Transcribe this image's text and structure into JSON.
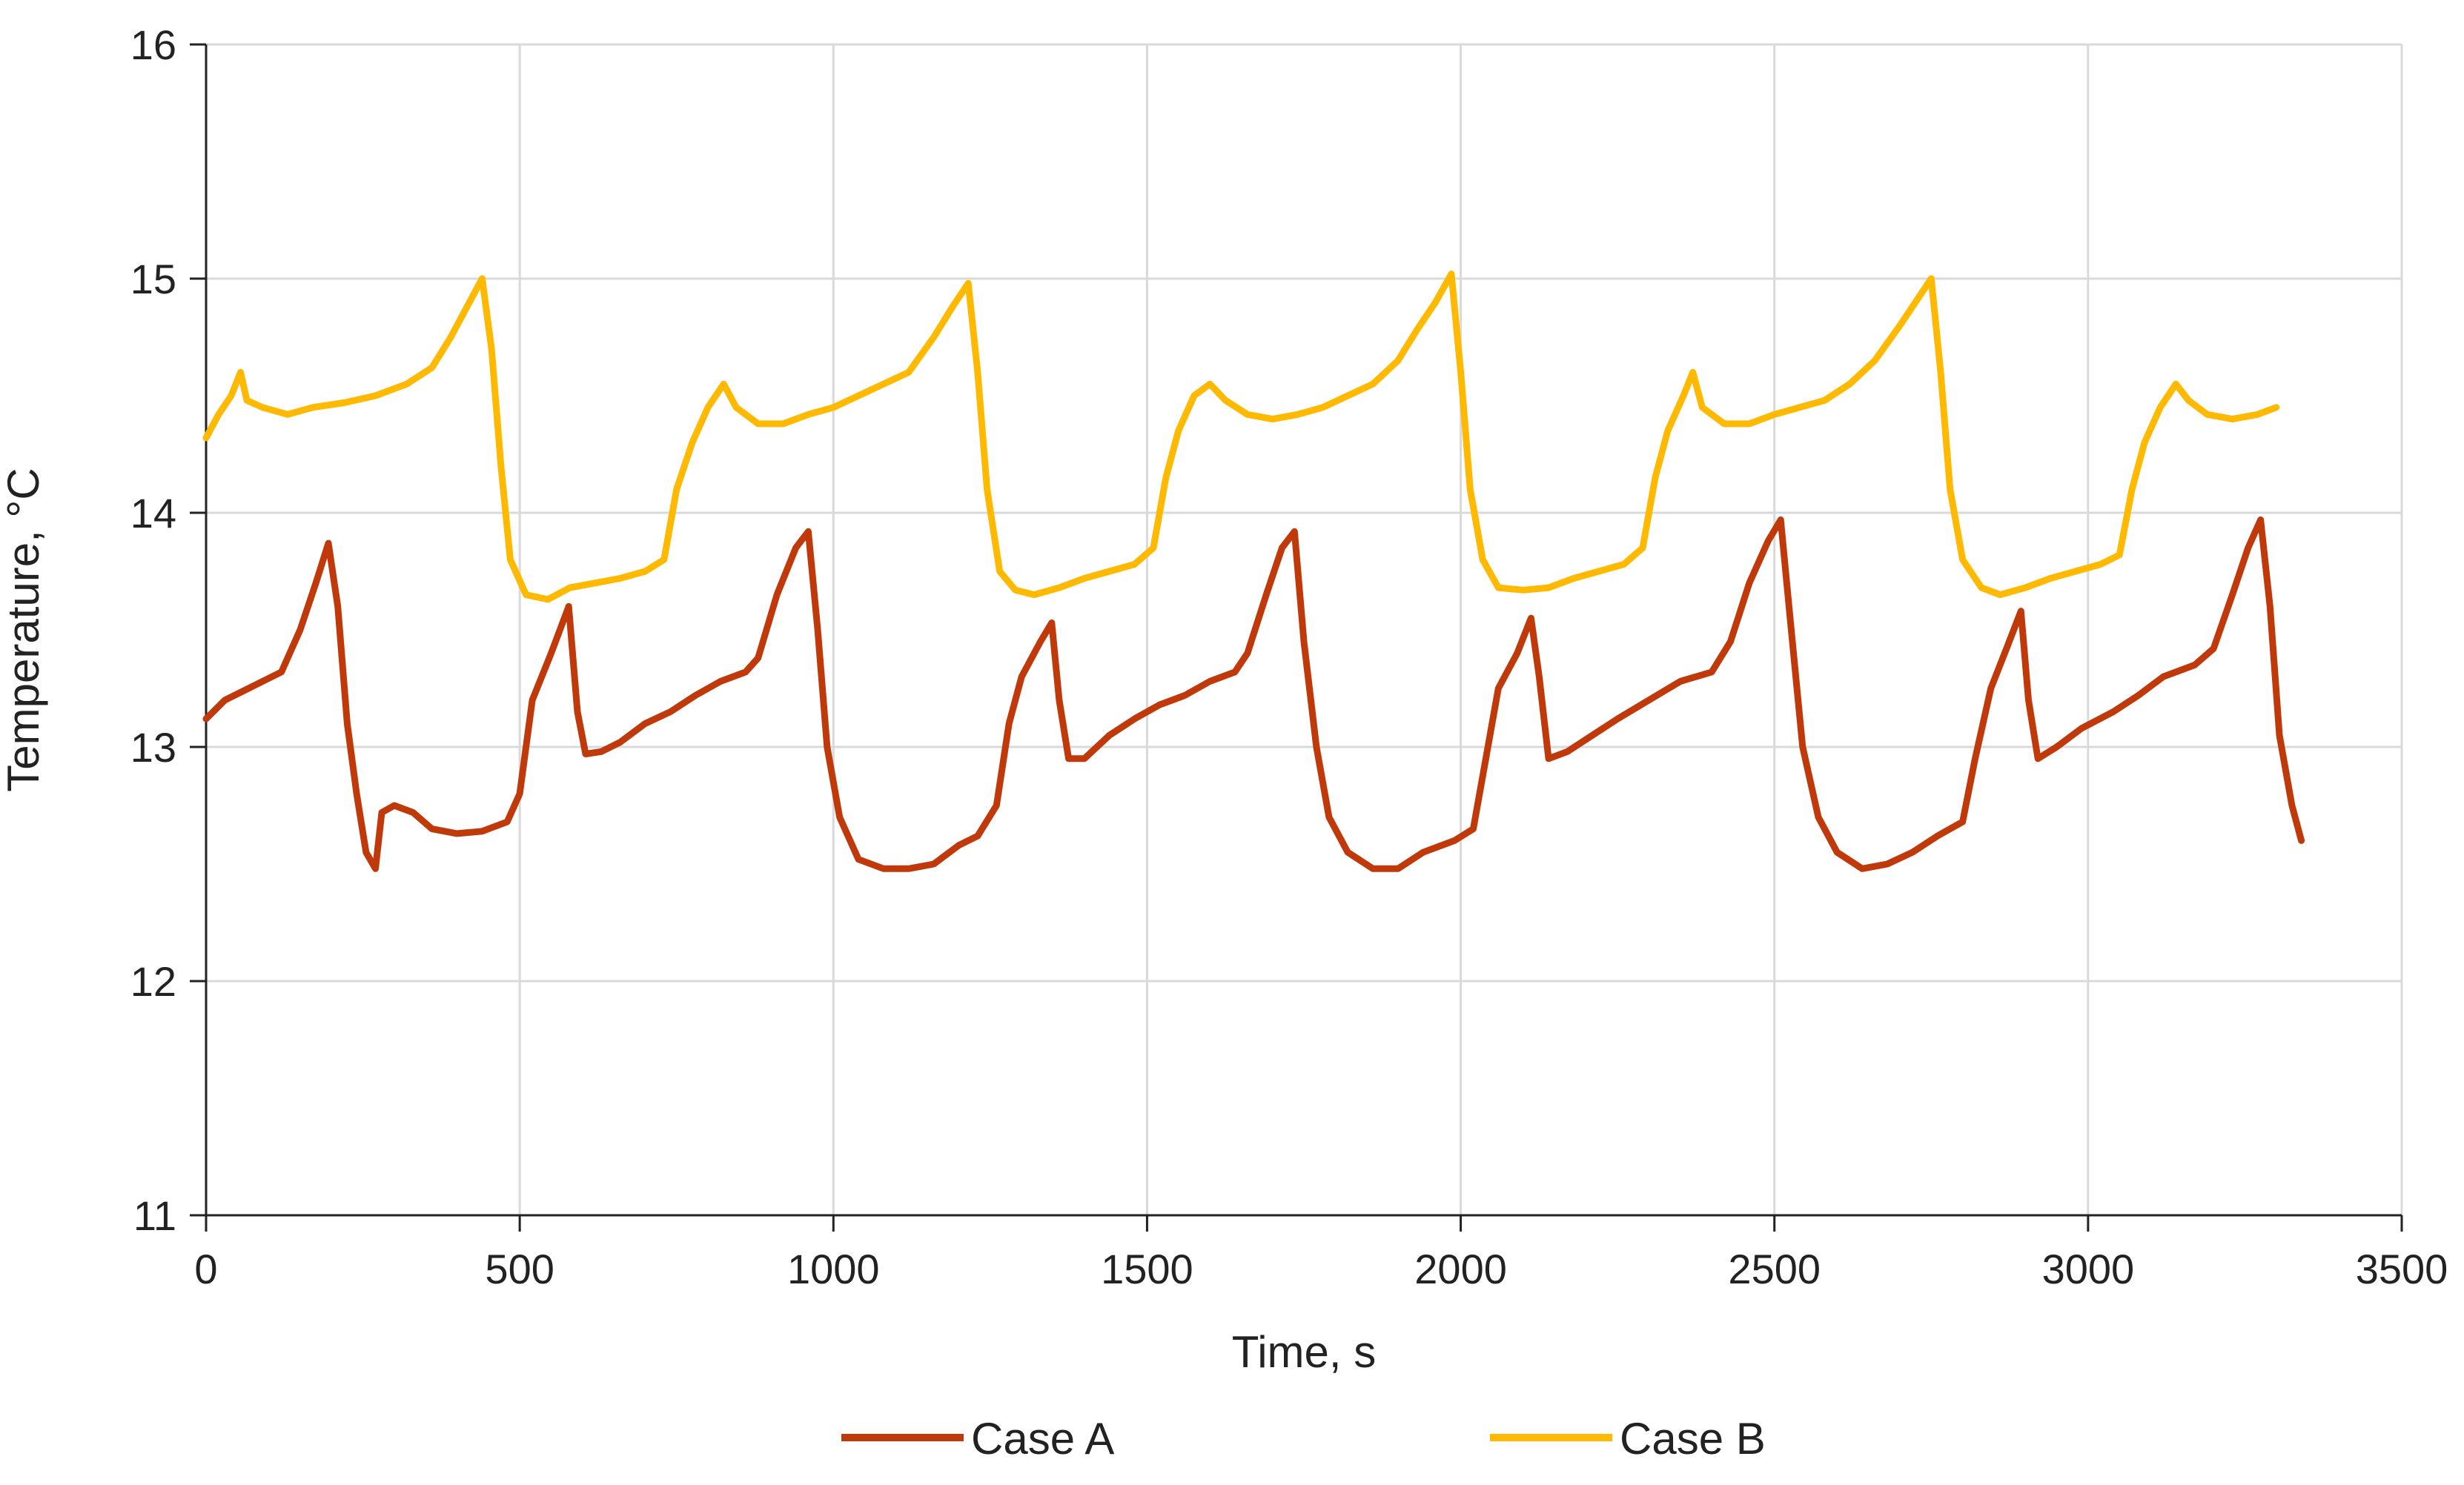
{
  "chart_data": {
    "type": "line",
    "title": "",
    "xlabel": "Time, s",
    "ylabel": "Temperature, °C",
    "xlim": [
      0,
      3500
    ],
    "ylim": [
      11,
      16
    ],
    "xticks": [
      0,
      500,
      1000,
      1500,
      2000,
      2500,
      3000,
      3500
    ],
    "yticks": [
      11,
      12,
      13,
      14,
      15,
      16
    ],
    "grid": true,
    "legend_position": "bottom",
    "series": [
      {
        "name": "Case A",
        "color": "#C0390B",
        "points": [
          [
            0,
            13.12
          ],
          [
            30,
            13.2
          ],
          [
            60,
            13.24
          ],
          [
            90,
            13.28
          ],
          [
            120,
            13.32
          ],
          [
            150,
            13.5
          ],
          [
            175,
            13.7
          ],
          [
            195,
            13.87
          ],
          [
            210,
            13.6
          ],
          [
            225,
            13.1
          ],
          [
            240,
            12.8
          ],
          [
            255,
            12.55
          ],
          [
            270,
            12.48
          ],
          [
            280,
            12.72
          ],
          [
            300,
            12.75
          ],
          [
            330,
            12.72
          ],
          [
            360,
            12.65
          ],
          [
            400,
            12.63
          ],
          [
            440,
            12.64
          ],
          [
            480,
            12.68
          ],
          [
            500,
            12.8
          ],
          [
            520,
            13.2
          ],
          [
            550,
            13.4
          ],
          [
            578,
            13.6
          ],
          [
            592,
            13.15
          ],
          [
            605,
            12.97
          ],
          [
            630,
            12.98
          ],
          [
            660,
            13.02
          ],
          [
            700,
            13.1
          ],
          [
            740,
            13.15
          ],
          [
            780,
            13.22
          ],
          [
            820,
            13.28
          ],
          [
            860,
            13.32
          ],
          [
            880,
            13.38
          ],
          [
            910,
            13.65
          ],
          [
            940,
            13.85
          ],
          [
            960,
            13.92
          ],
          [
            975,
            13.5
          ],
          [
            990,
            13.0
          ],
          [
            1010,
            12.7
          ],
          [
            1040,
            12.52
          ],
          [
            1080,
            12.48
          ],
          [
            1120,
            12.48
          ],
          [
            1160,
            12.5
          ],
          [
            1200,
            12.58
          ],
          [
            1230,
            12.62
          ],
          [
            1260,
            12.75
          ],
          [
            1280,
            13.1
          ],
          [
            1300,
            13.3
          ],
          [
            1330,
            13.45
          ],
          [
            1348,
            13.53
          ],
          [
            1360,
            13.2
          ],
          [
            1375,
            12.95
          ],
          [
            1400,
            12.95
          ],
          [
            1440,
            13.05
          ],
          [
            1480,
            13.12
          ],
          [
            1520,
            13.18
          ],
          [
            1560,
            13.22
          ],
          [
            1600,
            13.28
          ],
          [
            1640,
            13.32
          ],
          [
            1660,
            13.4
          ],
          [
            1690,
            13.65
          ],
          [
            1715,
            13.85
          ],
          [
            1735,
            13.92
          ],
          [
            1750,
            13.45
          ],
          [
            1770,
            13.0
          ],
          [
            1790,
            12.7
          ],
          [
            1820,
            12.55
          ],
          [
            1860,
            12.48
          ],
          [
            1900,
            12.48
          ],
          [
            1940,
            12.55
          ],
          [
            1990,
            12.6
          ],
          [
            2020,
            12.65
          ],
          [
            2040,
            12.95
          ],
          [
            2060,
            13.25
          ],
          [
            2090,
            13.4
          ],
          [
            2112,
            13.55
          ],
          [
            2125,
            13.3
          ],
          [
            2140,
            12.95
          ],
          [
            2170,
            12.98
          ],
          [
            2210,
            13.05
          ],
          [
            2250,
            13.12
          ],
          [
            2300,
            13.2
          ],
          [
            2350,
            13.28
          ],
          [
            2400,
            13.32
          ],
          [
            2430,
            13.45
          ],
          [
            2460,
            13.7
          ],
          [
            2490,
            13.88
          ],
          [
            2510,
            13.97
          ],
          [
            2525,
            13.55
          ],
          [
            2545,
            13.0
          ],
          [
            2570,
            12.7
          ],
          [
            2600,
            12.55
          ],
          [
            2640,
            12.48
          ],
          [
            2680,
            12.5
          ],
          [
            2720,
            12.55
          ],
          [
            2760,
            12.62
          ],
          [
            2800,
            12.68
          ],
          [
            2820,
            12.95
          ],
          [
            2845,
            13.25
          ],
          [
            2870,
            13.42
          ],
          [
            2893,
            13.58
          ],
          [
            2905,
            13.2
          ],
          [
            2920,
            12.95
          ],
          [
            2950,
            13.0
          ],
          [
            2990,
            13.08
          ],
          [
            3040,
            13.15
          ],
          [
            3080,
            13.22
          ],
          [
            3120,
            13.3
          ],
          [
            3170,
            13.35
          ],
          [
            3200,
            13.42
          ],
          [
            3230,
            13.65
          ],
          [
            3255,
            13.85
          ],
          [
            3275,
            13.97
          ],
          [
            3290,
            13.6
          ],
          [
            3305,
            13.05
          ],
          [
            3325,
            12.75
          ],
          [
            3340,
            12.6
          ]
        ]
      },
      {
        "name": "Case B",
        "color": "#FFB900",
        "points": [
          [
            0,
            14.32
          ],
          [
            20,
            14.42
          ],
          [
            40,
            14.5
          ],
          [
            55,
            14.6
          ],
          [
            65,
            14.48
          ],
          [
            90,
            14.45
          ],
          [
            130,
            14.42
          ],
          [
            170,
            14.45
          ],
          [
            220,
            14.47
          ],
          [
            270,
            14.5
          ],
          [
            320,
            14.55
          ],
          [
            360,
            14.62
          ],
          [
            390,
            14.75
          ],
          [
            420,
            14.9
          ],
          [
            440,
            15.0
          ],
          [
            455,
            14.7
          ],
          [
            470,
            14.2
          ],
          [
            485,
            13.8
          ],
          [
            510,
            13.65
          ],
          [
            545,
            13.63
          ],
          [
            580,
            13.68
          ],
          [
            620,
            13.7
          ],
          [
            660,
            13.72
          ],
          [
            700,
            13.75
          ],
          [
            730,
            13.8
          ],
          [
            750,
            14.1
          ],
          [
            775,
            14.3
          ],
          [
            800,
            14.45
          ],
          [
            825,
            14.55
          ],
          [
            845,
            14.45
          ],
          [
            880,
            14.38
          ],
          [
            920,
            14.38
          ],
          [
            960,
            14.42
          ],
          [
            1000,
            14.45
          ],
          [
            1040,
            14.5
          ],
          [
            1080,
            14.55
          ],
          [
            1120,
            14.6
          ],
          [
            1160,
            14.75
          ],
          [
            1190,
            14.88
          ],
          [
            1215,
            14.98
          ],
          [
            1230,
            14.6
          ],
          [
            1245,
            14.1
          ],
          [
            1265,
            13.75
          ],
          [
            1290,
            13.67
          ],
          [
            1320,
            13.65
          ],
          [
            1360,
            13.68
          ],
          [
            1400,
            13.72
          ],
          [
            1440,
            13.75
          ],
          [
            1480,
            13.78
          ],
          [
            1510,
            13.85
          ],
          [
            1530,
            14.15
          ],
          [
            1550,
            14.35
          ],
          [
            1575,
            14.5
          ],
          [
            1600,
            14.55
          ],
          [
            1625,
            14.48
          ],
          [
            1660,
            14.42
          ],
          [
            1700,
            14.4
          ],
          [
            1740,
            14.42
          ],
          [
            1780,
            14.45
          ],
          [
            1820,
            14.5
          ],
          [
            1860,
            14.55
          ],
          [
            1900,
            14.65
          ],
          [
            1930,
            14.78
          ],
          [
            1960,
            14.9
          ],
          [
            1985,
            15.02
          ],
          [
            2000,
            14.6
          ],
          [
            2015,
            14.1
          ],
          [
            2035,
            13.8
          ],
          [
            2060,
            13.68
          ],
          [
            2100,
            13.67
          ],
          [
            2140,
            13.68
          ],
          [
            2180,
            13.72
          ],
          [
            2220,
            13.75
          ],
          [
            2260,
            13.78
          ],
          [
            2290,
            13.85
          ],
          [
            2310,
            14.15
          ],
          [
            2330,
            14.35
          ],
          [
            2355,
            14.5
          ],
          [
            2370,
            14.6
          ],
          [
            2385,
            14.45
          ],
          [
            2420,
            14.38
          ],
          [
            2460,
            14.38
          ],
          [
            2500,
            14.42
          ],
          [
            2540,
            14.45
          ],
          [
            2580,
            14.48
          ],
          [
            2620,
            14.55
          ],
          [
            2660,
            14.65
          ],
          [
            2700,
            14.8
          ],
          [
            2730,
            14.92
          ],
          [
            2750,
            15.0
          ],
          [
            2765,
            14.6
          ],
          [
            2780,
            14.1
          ],
          [
            2800,
            13.8
          ],
          [
            2830,
            13.68
          ],
          [
            2860,
            13.65
          ],
          [
            2900,
            13.68
          ],
          [
            2940,
            13.72
          ],
          [
            2980,
            13.75
          ],
          [
            3020,
            13.78
          ],
          [
            3050,
            13.82
          ],
          [
            3070,
            14.1
          ],
          [
            3090,
            14.3
          ],
          [
            3115,
            14.45
          ],
          [
            3140,
            14.55
          ],
          [
            3160,
            14.48
          ],
          [
            3190,
            14.42
          ],
          [
            3230,
            14.4
          ],
          [
            3270,
            14.42
          ],
          [
            3300,
            14.45
          ]
        ]
      }
    ]
  }
}
